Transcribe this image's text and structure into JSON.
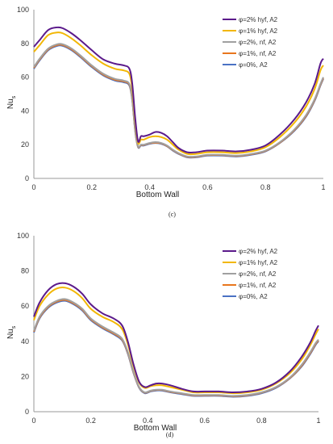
{
  "chart_data": [
    {
      "type": "line",
      "panel_label": "(c)",
      "xlabel": "Bottom Wall",
      "ylabel_main": "Nu",
      "ylabel_sub": "s",
      "xlim": [
        0,
        1
      ],
      "ylim": [
        0,
        100
      ],
      "x_ticks": [
        "0",
        "0.2",
        "0.4",
        "0.6",
        "0.8",
        "1"
      ],
      "y_ticks": [
        "0",
        "20",
        "40",
        "60",
        "80",
        "100"
      ],
      "grid": false,
      "legend_position": "top-right",
      "series": [
        {
          "name": "φ=2% hyf, A2",
          "color": "#5b1a8b",
          "x": [
            0,
            0.02,
            0.05,
            0.08,
            0.1,
            0.13,
            0.16,
            0.2,
            0.24,
            0.28,
            0.31,
            0.33,
            0.34,
            0.35,
            0.36,
            0.37,
            0.38,
            0.4,
            0.42,
            0.44,
            0.46,
            0.48,
            0.5,
            0.53,
            0.56,
            0.6,
            0.65,
            0.7,
            0.75,
            0.8,
            0.85,
            0.9,
            0.94,
            0.97,
            0.99,
            1
          ],
          "y": [
            78,
            82,
            88,
            89.5,
            89,
            86,
            82,
            76,
            70.5,
            68,
            67,
            65,
            56,
            36,
            22,
            25,
            25,
            26,
            27.5,
            27,
            25,
            21.5,
            18,
            15.5,
            15.5,
            16.5,
            16.5,
            16,
            17,
            19.5,
            26,
            35,
            45,
            56,
            68,
            71
          ]
        },
        {
          "name": "φ=1% hyf, A2",
          "color": "#f2b705",
          "x": [
            0,
            0.02,
            0.05,
            0.08,
            0.1,
            0.13,
            0.16,
            0.2,
            0.24,
            0.28,
            0.31,
            0.33,
            0.34,
            0.35,
            0.36,
            0.37,
            0.38,
            0.4,
            0.42,
            0.44,
            0.46,
            0.48,
            0.5,
            0.53,
            0.56,
            0.6,
            0.65,
            0.7,
            0.75,
            0.8,
            0.85,
            0.9,
            0.94,
            0.97,
            0.99,
            1
          ],
          "y": [
            75,
            79,
            85,
            86.5,
            86,
            83,
            79,
            73,
            68,
            65,
            64,
            62,
            53,
            34,
            21,
            23,
            23,
            24.5,
            25,
            24.5,
            23,
            20,
            17,
            14.5,
            14.5,
            15.5,
            15.5,
            15,
            16,
            18.5,
            24.5,
            33,
            42.5,
            53,
            64,
            67
          ]
        },
        {
          "name": "φ=2%, nf, A2",
          "color": "#a0a0a0",
          "x": [
            0,
            0.02,
            0.05,
            0.08,
            0.1,
            0.13,
            0.16,
            0.2,
            0.24,
            0.28,
            0.31,
            0.33,
            0.34,
            0.35,
            0.36,
            0.37,
            0.38,
            0.4,
            0.42,
            0.44,
            0.46,
            0.48,
            0.5,
            0.53,
            0.56,
            0.6,
            0.65,
            0.7,
            0.75,
            0.8,
            0.85,
            0.9,
            0.94,
            0.97,
            0.99,
            1
          ],
          "y": [
            66,
            71,
            77,
            79.5,
            79.5,
            77,
            73,
            67,
            62,
            59,
            58,
            56,
            47,
            29,
            19,
            20,
            20,
            21,
            21.5,
            21,
            19.5,
            17,
            15,
            13,
            13,
            14,
            14,
            13.5,
            14.5,
            16.5,
            21.5,
            29,
            37.5,
            47,
            56,
            60
          ]
        },
        {
          "name": "φ=1%, nf, A2",
          "color": "#e8761e",
          "x": [
            0,
            0.02,
            0.05,
            0.08,
            0.1,
            0.13,
            0.16,
            0.2,
            0.24,
            0.28,
            0.31,
            0.33,
            0.34,
            0.35,
            0.36,
            0.37,
            0.38,
            0.4,
            0.42,
            0.44,
            0.46,
            0.48,
            0.5,
            0.53,
            0.56,
            0.6,
            0.65,
            0.7,
            0.75,
            0.8,
            0.85,
            0.9,
            0.94,
            0.97,
            0.99,
            1
          ],
          "y": [
            65.5,
            70.5,
            76.5,
            79,
            79,
            76.5,
            72.5,
            66.5,
            61.5,
            58.5,
            57.5,
            55.5,
            46.5,
            28.5,
            18.8,
            19.8,
            19.8,
            20.8,
            21.2,
            20.8,
            19.2,
            16.8,
            14.8,
            12.8,
            12.8,
            13.8,
            13.8,
            13.3,
            14.3,
            16.3,
            21.2,
            28.6,
            37,
            46.5,
            55.5,
            59.5
          ]
        },
        {
          "name": "φ=0%, A2",
          "color": "#4a72c4",
          "x": [
            0,
            0.02,
            0.05,
            0.08,
            0.1,
            0.13,
            0.16,
            0.2,
            0.24,
            0.28,
            0.31,
            0.33,
            0.34,
            0.35,
            0.36,
            0.37,
            0.38,
            0.4,
            0.42,
            0.44,
            0.46,
            0.48,
            0.5,
            0.53,
            0.56,
            0.6,
            0.65,
            0.7,
            0.75,
            0.8,
            0.85,
            0.9,
            0.94,
            0.97,
            0.99,
            1
          ],
          "y": [
            65,
            70,
            76,
            78.5,
            78.5,
            76,
            72,
            66,
            61,
            58,
            57,
            55,
            46,
            28,
            18.5,
            19.5,
            19.5,
            20.5,
            21,
            20.5,
            19,
            16.5,
            14.5,
            12.5,
            12.5,
            13.5,
            13.5,
            13,
            14,
            16,
            21,
            28.2,
            36.5,
            46,
            55,
            59
          ]
        }
      ]
    },
    {
      "type": "line",
      "panel_label": "(d)",
      "xlabel": "Bottom Wall",
      "ylabel_main": "Nu",
      "ylabel_sub": "s",
      "xlim": [
        0,
        1
      ],
      "ylim": [
        0,
        100
      ],
      "x_ticks": [
        "0",
        "0.2",
        "0.4",
        "0.6",
        "0.8",
        "1"
      ],
      "y_ticks": [
        "0",
        "20",
        "40",
        "60",
        "80",
        "100"
      ],
      "grid": false,
      "legend_position": "top-right",
      "series": [
        {
          "name": "φ=2% hyf, A2",
          "color": "#5b1a8b",
          "x": [
            0,
            0.02,
            0.05,
            0.08,
            0.11,
            0.14,
            0.17,
            0.2,
            0.24,
            0.28,
            0.31,
            0.33,
            0.35,
            0.37,
            0.39,
            0.41,
            0.43,
            0.45,
            0.48,
            0.52,
            0.56,
            0.6,
            0.65,
            0.7,
            0.75,
            0.8,
            0.85,
            0.9,
            0.94,
            0.97,
            0.99,
            1
          ],
          "y": [
            54,
            62,
            69,
            72.5,
            73,
            71,
            67,
            61,
            56,
            53,
            49,
            40,
            27,
            17,
            14,
            15,
            16,
            16,
            15,
            13,
            11.5,
            11.5,
            11.5,
            11,
            11.5,
            13,
            16.5,
            23,
            31,
            39,
            46,
            49
          ]
        },
        {
          "name": "φ=1% hyf, A2",
          "color": "#f2b705",
          "x": [
            0,
            0.02,
            0.05,
            0.08,
            0.11,
            0.14,
            0.17,
            0.2,
            0.24,
            0.28,
            0.31,
            0.33,
            0.35,
            0.37,
            0.39,
            0.41,
            0.43,
            0.45,
            0.48,
            0.52,
            0.56,
            0.6,
            0.65,
            0.7,
            0.75,
            0.8,
            0.85,
            0.9,
            0.94,
            0.97,
            0.99,
            1
          ],
          "y": [
            52,
            60,
            66.5,
            70,
            70.5,
            68.5,
            64.5,
            58.5,
            54,
            51,
            47,
            38.5,
            26,
            16.5,
            13.5,
            14.5,
            15,
            15,
            14,
            12.5,
            11,
            11,
            11,
            10.5,
            11,
            12.5,
            16,
            22,
            29.5,
            37.5,
            44,
            47
          ]
        },
        {
          "name": "φ=2%, nf, A2",
          "color": "#a0a0a0",
          "x": [
            0,
            0.02,
            0.05,
            0.08,
            0.11,
            0.14,
            0.17,
            0.2,
            0.24,
            0.28,
            0.31,
            0.33,
            0.35,
            0.37,
            0.39,
            0.41,
            0.43,
            0.45,
            0.48,
            0.52,
            0.56,
            0.6,
            0.65,
            0.7,
            0.75,
            0.8,
            0.85,
            0.9,
            0.94,
            0.97,
            0.99,
            1
          ],
          "y": [
            46,
            54,
            60,
            63,
            64,
            62,
            58.5,
            53,
            48.5,
            45,
            41.5,
            34,
            22.5,
            14,
            11,
            12,
            12.5,
            12.5,
            11.5,
            10.5,
            9.5,
            9.5,
            9.5,
            9,
            9.5,
            11,
            14,
            19.5,
            26.5,
            33.5,
            39,
            41
          ]
        },
        {
          "name": "φ=1%, nf, A2",
          "color": "#e8761e",
          "x": [
            0,
            0.02,
            0.05,
            0.08,
            0.11,
            0.14,
            0.17,
            0.2,
            0.24,
            0.28,
            0.31,
            0.33,
            0.35,
            0.37,
            0.39,
            0.41,
            0.43,
            0.45,
            0.48,
            0.52,
            0.56,
            0.6,
            0.65,
            0.7,
            0.75,
            0.8,
            0.85,
            0.9,
            0.94,
            0.97,
            0.99,
            1
          ],
          "y": [
            45.5,
            53.5,
            59.5,
            62.5,
            63.5,
            61.5,
            58,
            52.5,
            48,
            44.5,
            41,
            33.5,
            22.2,
            13.8,
            10.8,
            11.8,
            12.3,
            12.3,
            11.3,
            10.3,
            9.3,
            9.3,
            9.3,
            8.8,
            9.3,
            10.8,
            13.8,
            19.2,
            26,
            33,
            38.5,
            40.5
          ]
        },
        {
          "name": "φ=0%, A2",
          "color": "#4a72c4",
          "x": [
            0,
            0.02,
            0.05,
            0.08,
            0.11,
            0.14,
            0.17,
            0.2,
            0.24,
            0.28,
            0.31,
            0.33,
            0.35,
            0.37,
            0.39,
            0.41,
            0.43,
            0.45,
            0.48,
            0.52,
            0.56,
            0.6,
            0.65,
            0.7,
            0.75,
            0.8,
            0.85,
            0.9,
            0.94,
            0.97,
            0.99,
            1
          ],
          "y": [
            45,
            53,
            59,
            62,
            63,
            61,
            57.5,
            52,
            47.5,
            44,
            40.5,
            33,
            22,
            13.5,
            10.5,
            11.5,
            12,
            12,
            11,
            10,
            9,
            9,
            9,
            8.5,
            9,
            10.5,
            13.5,
            19,
            25.5,
            32.5,
            38,
            40
          ]
        }
      ]
    }
  ]
}
